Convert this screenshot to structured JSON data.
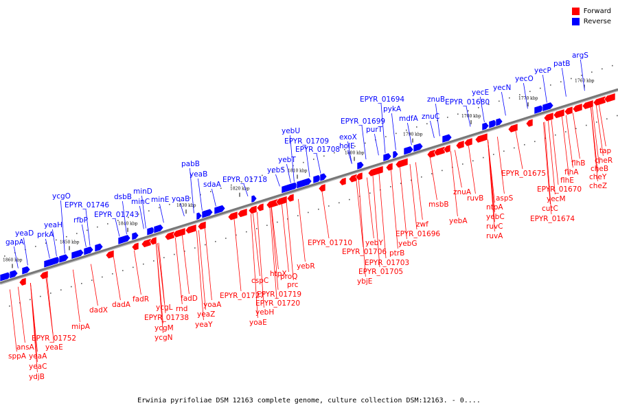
{
  "legend": {
    "forward_label": "Forward",
    "reverse_label": "Reverse",
    "forward_color": "#ff0000",
    "reverse_color": "#0000ff"
  },
  "caption": "Erwinia pyrifoliae DSM 12163 complete genome, culture collection DSM:12163. - 0....",
  "axis": {
    "ticks": [
      "1860 kbp",
      "1850 kbp",
      "1840 kbp",
      "1830 kbp",
      "1820 kbp",
      "1810 kbp",
      "1800 kbp",
      "1790 kbp",
      "1780 kbp",
      "1770 kbp",
      "1760 kbp"
    ]
  },
  "reverse_genes": [
    "gapA",
    "yeaD",
    "prkA",
    "yeaH",
    "ycgO",
    "EPYR_01746",
    "rfbP",
    "EPYR_01743",
    "dsbB",
    "minD",
    "minC",
    "minE",
    "yoaB",
    "pabB",
    "yeaB",
    "sdaA",
    "EPYR_01718",
    "yebS",
    "yebT",
    "yebU",
    "EPYR_01709",
    "EPYR_01708",
    "exoX",
    "holE",
    "EPYR_01699",
    "purT",
    "EPYR_01694",
    "pykA",
    "mdfA",
    "znuC",
    "znuB",
    "EPYR_01680",
    "yecE",
    "yecN",
    "yecO",
    "yecP",
    "patB",
    "argS"
  ],
  "forward_genes": [
    "sppA",
    "ansA",
    "EPYR_01752",
    "yeaA",
    "yeaC",
    "ydjB",
    "yeaE",
    "mipA",
    "dadX",
    "dadA",
    "fadR",
    "ycgL",
    "EPYR_01738",
    "ycgM",
    "ycgN",
    "rnd",
    "fadD",
    "yeaZ",
    "yeaY",
    "yoaA",
    "EPYR_01727",
    "yoaE",
    "yebH",
    "cspC",
    "EPYR_01720",
    "htpX",
    "EPYR_01719",
    "proQ",
    "prc",
    "yebR",
    "EPYR_01710",
    "EPYR_01706",
    "yebY",
    "EPYR_01703",
    "EPYR_01705",
    "ybjE",
    "ptrB",
    "yebG",
    "EPYR_01696",
    "zwf",
    "msbB",
    "znuA",
    "yebA",
    "ruvB",
    "ntpA",
    "yebC",
    "ruvC",
    "ruvA",
    "aspS",
    "EPYR_01675",
    "EPYR_01670",
    "yecM",
    "cutC",
    "EPYR_01674",
    "flhE",
    "flhA",
    "flhB",
    "cheZ",
    "cheY",
    "cheB",
    "cheR",
    "tap"
  ]
}
